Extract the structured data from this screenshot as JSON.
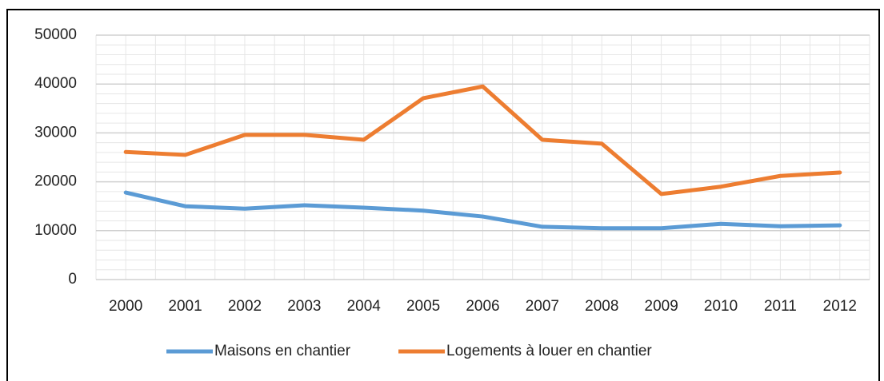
{
  "chart_data": {
    "type": "line",
    "categories": [
      "2000",
      "2001",
      "2002",
      "2003",
      "2004",
      "2005",
      "2006",
      "2007",
      "2008",
      "2009",
      "2010",
      "2011",
      "2012"
    ],
    "series": [
      {
        "name": "Maisons en chantier",
        "color": "#5b9bd5",
        "values": [
          17800,
          15000,
          14500,
          15200,
          14700,
          14100,
          12900,
          10800,
          10500,
          10500,
          11400,
          10900,
          11100
        ]
      },
      {
        "name": "Logements à louer en chantier",
        "color": "#ed7d31",
        "values": [
          26100,
          25500,
          29600,
          29600,
          28600,
          37100,
          39500,
          28600,
          27800,
          17500,
          19000,
          21200,
          21900
        ]
      }
    ],
    "ylim": [
      0,
      50000
    ],
    "yticks": [
      0,
      10000,
      20000,
      30000,
      40000,
      50000
    ],
    "grid": true,
    "legend": "bottom"
  }
}
